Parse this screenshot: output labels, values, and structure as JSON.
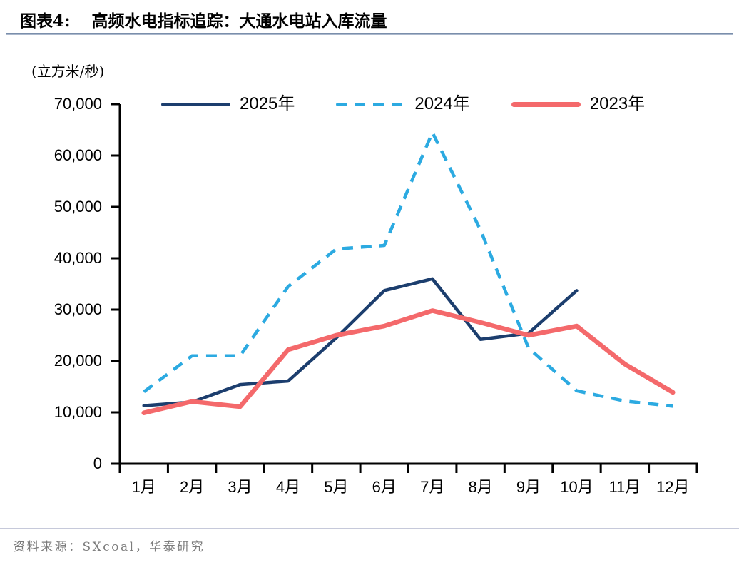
{
  "header": {
    "figure_label": "图表4:",
    "title": "高频水电指标追踪：大通水电站入库流量"
  },
  "chart": {
    "unit_label": "(立方米/秒)"
  },
  "footer": {
    "source_text": "资料来源：SXcoal，华泰研究"
  },
  "chart_data": {
    "type": "line",
    "title": "高频水电指标追踪：大通水电站入库流量",
    "unit": "立方米/秒",
    "categories": [
      "1月",
      "2月",
      "3月",
      "4月",
      "5月",
      "6月",
      "7月",
      "8月",
      "9月",
      "10月",
      "11月",
      "12月"
    ],
    "y_ticks": [
      "0",
      "10,000",
      "20,000",
      "30,000",
      "40,000",
      "50,000",
      "60,000",
      "70,000"
    ],
    "ylim": [
      0,
      70000
    ],
    "grid": false,
    "legend_position": "top",
    "series": [
      {
        "name": "2025年",
        "color": "#1c3e6e",
        "style": "solid",
        "values": [
          11300,
          12000,
          15400,
          16100,
          24500,
          33700,
          36000,
          24200,
          25400,
          33700,
          null,
          null
        ]
      },
      {
        "name": "2024年",
        "color": "#2caae1",
        "style": "dashed",
        "values": [
          14000,
          21000,
          21000,
          34500,
          41800,
          42500,
          64500,
          45500,
          22500,
          14200,
          12200,
          11200
        ]
      },
      {
        "name": "2023年",
        "color": "#f4696b",
        "style": "solid",
        "values": [
          9900,
          12100,
          11100,
          22200,
          25000,
          26800,
          29800,
          27500,
          25000,
          26800,
          19400,
          13900
        ]
      }
    ]
  }
}
